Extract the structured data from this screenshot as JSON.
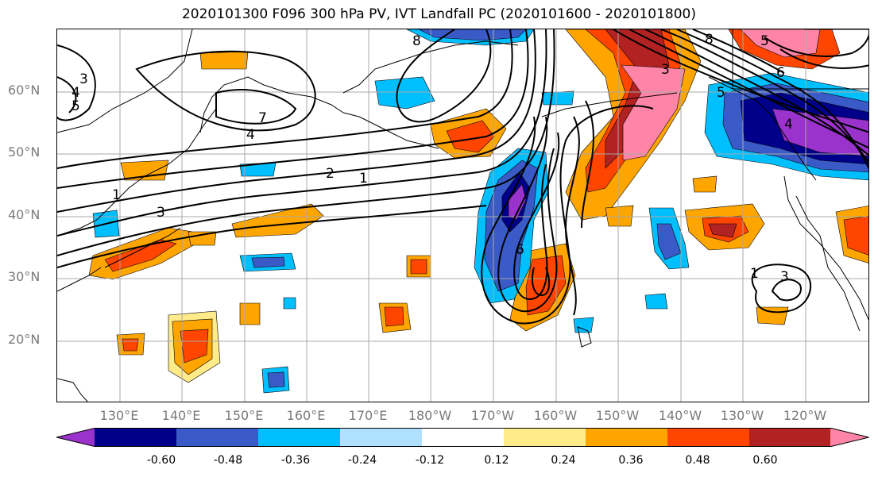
{
  "title": "2020101300 F096 300 hPa PV, IVT Landfall PC (2020101600 - 2020101800)",
  "lat_ticks": [
    "60°N",
    "50°N",
    "40°N",
    "30°N",
    "20°N"
  ],
  "lon_ticks": [
    "130°E",
    "140°E",
    "150°E",
    "160°E",
    "170°E",
    "180°W",
    "170°W",
    "160°W",
    "150°W",
    "140°W",
    "130°W",
    "120°W"
  ],
  "colorbar": {
    "colors": [
      "#9933cc",
      "#00008b",
      "#3a5bc7",
      "#00bfff",
      "#b0e0ff",
      "#ffffff",
      "#ffeb8a",
      "#ffa500",
      "#ff4500",
      "#b22222",
      "#ff85a8"
    ],
    "labels": [
      "-0.60",
      "-0.48",
      "-0.36",
      "-0.24",
      "-0.12",
      "0.12",
      "0.24",
      "0.36",
      "0.48",
      "0.60"
    ],
    "extend": "both"
  },
  "contour_labels": [
    "3",
    "4",
    "5",
    "7",
    "4",
    "2",
    "1",
    "3",
    "1",
    "6",
    "1",
    "3",
    "8",
    "3",
    "8",
    "5",
    "6",
    "5",
    "4"
  ]
}
